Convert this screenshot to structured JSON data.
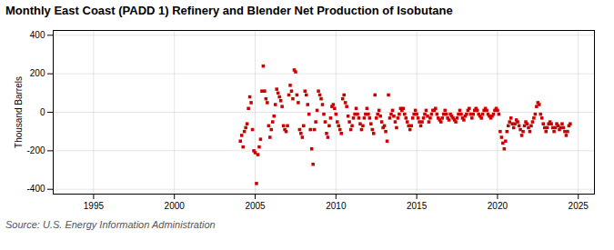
{
  "chart_data": {
    "type": "scatter",
    "title": "Monthly East Coast (PADD 1) Refinery and Blender Net Production of Isobutane",
    "ylabel": "Thousand Barrels",
    "source": "Source: U.S. Energy Information Administration",
    "color": "#cc0000",
    "marker": "square",
    "grid": true,
    "xlim": [
      1992.5,
      2026
    ],
    "ylim": [
      -425,
      425
    ],
    "xticks": [
      1995,
      2000,
      2005,
      2010,
      2015,
      2020,
      2025
    ],
    "yticks": [
      -400,
      -200,
      0,
      200,
      400
    ],
    "x": [
      2004.083,
      2004.167,
      2004.25,
      2004.333,
      2004.417,
      2004.5,
      2004.583,
      2004.667,
      2004.75,
      2004.833,
      2004.917,
      2005.0,
      2005.083,
      2005.167,
      2005.25,
      2005.333,
      2005.417,
      2005.5,
      2005.583,
      2005.667,
      2005.75,
      2005.833,
      2005.917,
      2006.0,
      2006.083,
      2006.167,
      2006.25,
      2006.333,
      2006.417,
      2006.5,
      2006.583,
      2006.667,
      2006.75,
      2006.833,
      2006.917,
      2007.0,
      2007.083,
      2007.167,
      2007.25,
      2007.333,
      2007.417,
      2007.5,
      2007.583,
      2007.667,
      2007.75,
      2007.833,
      2007.917,
      2008.0,
      2008.083,
      2008.167,
      2008.25,
      2008.333,
      2008.417,
      2008.5,
      2008.583,
      2008.667,
      2008.75,
      2008.833,
      2008.917,
      2009.0,
      2009.083,
      2009.167,
      2009.25,
      2009.333,
      2009.417,
      2009.5,
      2009.583,
      2009.667,
      2009.75,
      2009.833,
      2009.917,
      2010.0,
      2010.083,
      2010.167,
      2010.25,
      2010.333,
      2010.417,
      2010.5,
      2010.583,
      2010.667,
      2010.75,
      2010.833,
      2010.917,
      2011.0,
      2011.083,
      2011.167,
      2011.25,
      2011.333,
      2011.417,
      2011.5,
      2011.583,
      2011.667,
      2011.75,
      2011.833,
      2011.917,
      2012.0,
      2012.083,
      2012.167,
      2012.25,
      2012.333,
      2012.417,
      2012.5,
      2012.583,
      2012.667,
      2012.75,
      2012.833,
      2012.917,
      2013.0,
      2013.083,
      2013.167,
      2013.25,
      2013.333,
      2013.417,
      2013.5,
      2013.583,
      2013.667,
      2013.75,
      2013.833,
      2013.917,
      2014.0,
      2014.083,
      2014.167,
      2014.25,
      2014.333,
      2014.417,
      2014.5,
      2014.583,
      2014.667,
      2014.75,
      2014.833,
      2014.917,
      2015.0,
      2015.083,
      2015.167,
      2015.25,
      2015.333,
      2015.417,
      2015.5,
      2015.583,
      2015.667,
      2015.75,
      2015.833,
      2015.917,
      2016.0,
      2016.083,
      2016.167,
      2016.25,
      2016.333,
      2016.417,
      2016.5,
      2016.583,
      2016.667,
      2016.75,
      2016.833,
      2016.917,
      2017.0,
      2017.083,
      2017.167,
      2017.25,
      2017.333,
      2017.417,
      2017.5,
      2017.583,
      2017.667,
      2017.75,
      2017.833,
      2017.917,
      2018.0,
      2018.083,
      2018.167,
      2018.25,
      2018.333,
      2018.417,
      2018.5,
      2018.583,
      2018.667,
      2018.75,
      2018.833,
      2018.917,
      2019.0,
      2019.083,
      2019.167,
      2019.25,
      2019.333,
      2019.417,
      2019.5,
      2019.583,
      2019.667,
      2019.75,
      2019.833,
      2019.917,
      2020.0,
      2020.083,
      2020.167,
      2020.25,
      2020.333,
      2020.417,
      2020.5,
      2020.583,
      2020.667,
      2020.75,
      2020.833,
      2020.917,
      2021.0,
      2021.083,
      2021.167,
      2021.25,
      2021.333,
      2021.417,
      2021.5,
      2021.583,
      2021.667,
      2021.75,
      2021.833,
      2021.917,
      2022.0,
      2022.083,
      2022.167,
      2022.25,
      2022.333,
      2022.417,
      2022.5,
      2022.583,
      2022.667,
      2022.75,
      2022.833,
      2022.917,
      2023.0,
      2023.083,
      2023.167,
      2023.25,
      2023.333,
      2023.417,
      2023.5,
      2023.583,
      2023.667,
      2023.75,
      2023.833,
      2023.917,
      2024.0,
      2024.083,
      2024.167,
      2024.25,
      2024.333,
      2024.417,
      2024.5
    ],
    "values": [
      -150,
      -120,
      -180,
      -100,
      -80,
      -60,
      20,
      80,
      50,
      -90,
      -200,
      -210,
      -370,
      -220,
      -180,
      -140,
      110,
      240,
      110,
      70,
      50,
      -70,
      -130,
      -90,
      -50,
      -20,
      40,
      120,
      100,
      80,
      60,
      30,
      -70,
      -90,
      -100,
      -70,
      90,
      140,
      110,
      70,
      220,
      210,
      90,
      50,
      -90,
      -110,
      -130,
      -70,
      110,
      90,
      40,
      -10,
      -90,
      -190,
      -270,
      -90,
      -50,
      10,
      110,
      90,
      70,
      40,
      -10,
      -50,
      -110,
      -130,
      -70,
      -30,
      30,
      40,
      20,
      -10,
      -50,
      -70,
      -90,
      -110,
      70,
      90,
      50,
      30,
      -20,
      -50,
      -90,
      -70,
      -30,
      -10,
      20,
      -10,
      -30,
      -60,
      -90,
      -70,
      -30,
      -10,
      20,
      -10,
      -30,
      -60,
      -90,
      -110,
      90,
      -30,
      -10,
      10,
      -20,
      -50,
      -80,
      -70,
      -100,
      -150,
      90,
      -30,
      -10,
      10,
      -20,
      -50,
      -80,
      -30,
      -10,
      20,
      10,
      20,
      -10,
      -30,
      -50,
      -70,
      -90,
      -70,
      -30,
      -10,
      10,
      -10,
      -30,
      -50,
      -70,
      -50,
      -30,
      -10,
      10,
      -20,
      -50,
      -30,
      -10,
      10,
      10,
      20,
      -10,
      -30,
      -40,
      -50,
      -30,
      -10,
      10,
      -10,
      -30,
      -40,
      -10,
      -20,
      -30,
      -40,
      -50,
      -30,
      -10,
      10,
      -10,
      -30,
      -40,
      -20,
      -10,
      10,
      20,
      -10,
      -30,
      -10,
      10,
      20,
      10,
      -10,
      -20,
      -30,
      -10,
      10,
      20,
      10,
      -10,
      -20,
      -30,
      -20,
      -10,
      10,
      20,
      10,
      -10,
      -100,
      -130,
      -160,
      -190,
      -150,
      -100,
      -70,
      -50,
      -30,
      -60,
      -80,
      -60,
      -40,
      -50,
      -70,
      -90,
      -120,
      -100,
      -70,
      -50,
      -60,
      -80,
      -100,
      -70,
      -50,
      -30,
      -10,
      30,
      50,
      40,
      -10,
      -30,
      -60,
      -80,
      -100,
      -80,
      -60,
      -50,
      -60,
      -80,
      -100,
      -80,
      -60,
      -70,
      -90,
      -80,
      -60,
      -80,
      -100,
      -120,
      -100,
      -70,
      -60
    ]
  }
}
